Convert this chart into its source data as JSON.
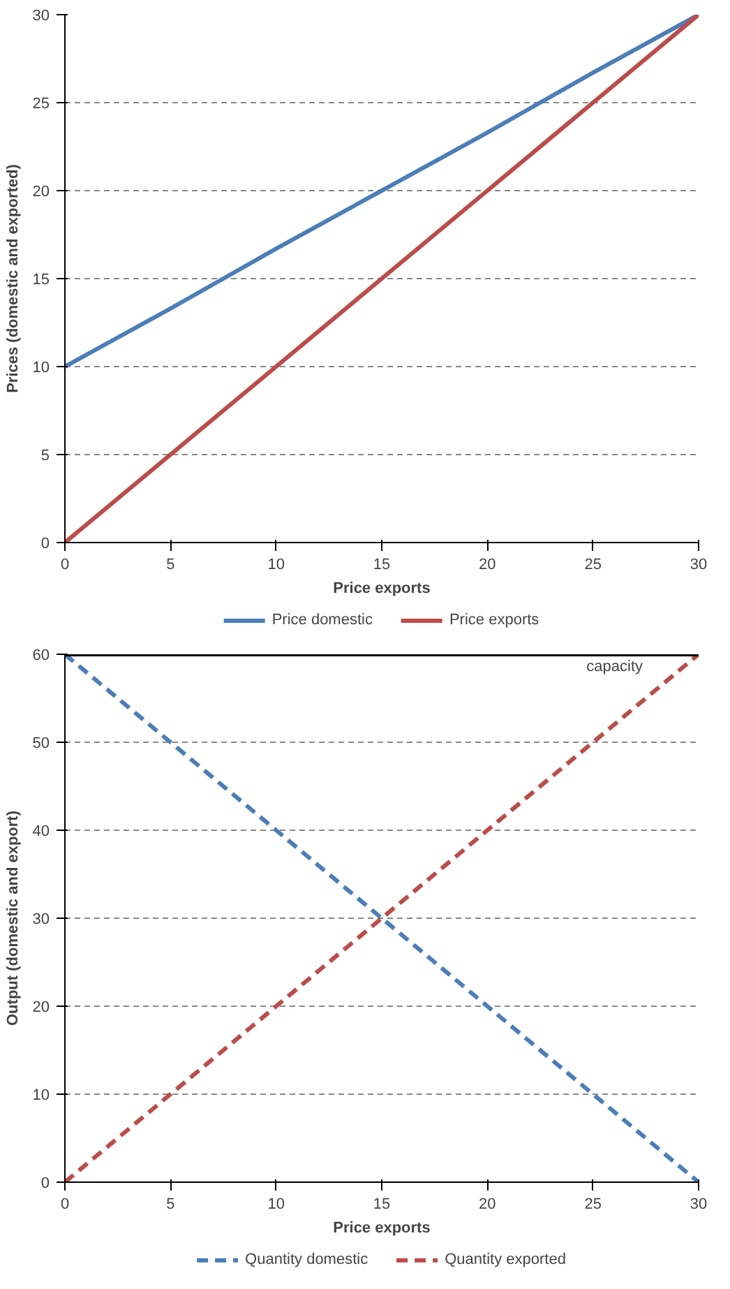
{
  "chart_data": [
    {
      "type": "line",
      "xlabel": "Price exports",
      "ylabel": "Prices (domestic and exported)",
      "x": [
        0,
        5,
        10,
        15,
        20,
        25,
        30
      ],
      "series": [
        {
          "name": "Price domestic",
          "color": "#4a7ebb",
          "values": [
            10,
            13.3,
            16.7,
            20,
            23.3,
            26.7,
            30
          ]
        },
        {
          "name": "Price exports",
          "color": "#be4b48",
          "values": [
            0,
            5,
            10,
            15,
            20,
            25,
            30
          ]
        }
      ],
      "xlim": [
        0,
        30
      ],
      "ylim": [
        0,
        30
      ],
      "xticks": [
        0,
        5,
        10,
        15,
        20,
        25,
        30
      ],
      "yticks": [
        0,
        5,
        10,
        15,
        20,
        25,
        30
      ],
      "grid": "y",
      "legend": "bottom",
      "line_style": "solid"
    },
    {
      "type": "line",
      "xlabel": "Price exports",
      "ylabel": "Output (domestic and export)",
      "x": [
        0,
        5,
        10,
        15,
        20,
        25,
        30
      ],
      "series": [
        {
          "name": "Quantity domestic",
          "color": "#4a7ebb",
          "values": [
            60,
            50,
            40,
            30,
            20,
            10,
            0
          ]
        },
        {
          "name": "Quantity exported",
          "color": "#be4b48",
          "values": [
            0,
            10,
            20,
            30,
            40,
            50,
            60
          ]
        }
      ],
      "ref_lines": [
        {
          "axis": "y",
          "value": 60,
          "label": "capacity",
          "color": "#000000",
          "line_style": "solid"
        }
      ],
      "xlim": [
        0,
        30
      ],
      "ylim": [
        0,
        60
      ],
      "xticks": [
        0,
        5,
        10,
        15,
        20,
        25,
        30
      ],
      "yticks": [
        0,
        10,
        20,
        30,
        40,
        50,
        60
      ],
      "grid": "y",
      "legend": "bottom",
      "line_style": "dashed"
    }
  ]
}
